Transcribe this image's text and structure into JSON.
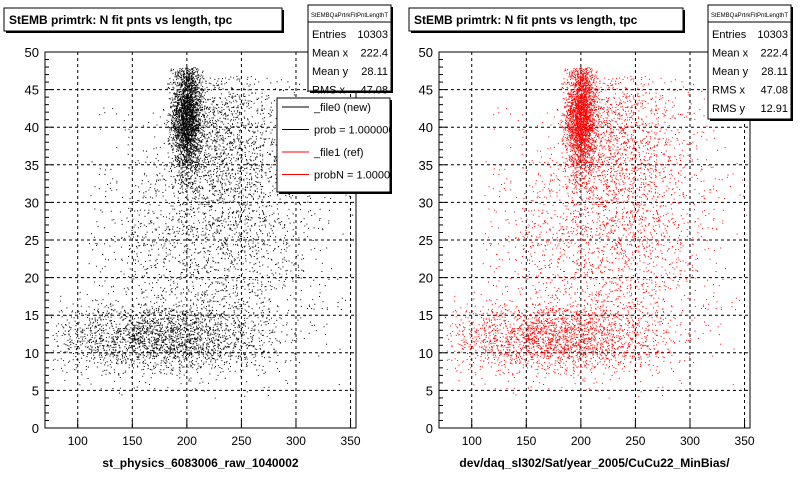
{
  "chart_data": [
    {
      "type": "scatter",
      "title": "StEMB primtrk: N fit pnts vs length, tpc",
      "xlabel": "st_physics_6083006_raw_1040002",
      "ylabel": "",
      "xlim": [
        70,
        355
      ],
      "ylim": [
        0,
        50
      ],
      "x_ticks": [
        "100",
        "150",
        "200",
        "250",
        "300",
        "350"
      ],
      "y_ticks": [
        "0",
        "5",
        "10",
        "15",
        "20",
        "25",
        "30",
        "35",
        "40",
        "45",
        "50"
      ],
      "grid": true,
      "point_color": "#000000",
      "stats": {
        "name": "StEMBQaPrtrkFitPntLengthT",
        "rows": [
          {
            "label": "Entries",
            "value": "10303"
          },
          {
            "label": "Mean x",
            "value": "222.4"
          },
          {
            "label": "Mean y",
            "value": "28.11"
          },
          {
            "label": "RMS x",
            "value": "47.08"
          }
        ]
      },
      "legend": {
        "placement": "top-right",
        "entries": [
          {
            "label": "_file0 (new)",
            "color": "#000000"
          },
          {
            "label": "prob = 1.000000",
            "color": "#000000"
          },
          {
            "label": "_file1 (ref)",
            "color": "#ff0000"
          },
          {
            "label": "probN = 1.000000",
            "color": "#ff0000"
          }
        ]
      },
      "clusters": [
        {
          "x": 200,
          "y": 41.5,
          "sx": 7,
          "sy": 3.8,
          "n": 2600,
          "xmin": 178,
          "xmax": 226,
          "ymin": 25,
          "ymax": 48
        },
        {
          "x": 232,
          "y": 38,
          "sx": 30,
          "sy": 6,
          "n": 1300,
          "xmin": 190,
          "xmax": 318,
          "ymin": 22,
          "ymax": 47
        },
        {
          "x": 175,
          "y": 12,
          "sx": 50,
          "sy": 2.4,
          "n": 2200,
          "xmin": 75,
          "xmax": 320,
          "ymin": 4,
          "ymax": 20
        },
        {
          "x": 210,
          "y": 24,
          "sx": 55,
          "sy": 8,
          "n": 1400,
          "xmin": 110,
          "xmax": 350,
          "ymin": 8,
          "ymax": 46
        },
        {
          "x": 250,
          "y": 28,
          "sx": 45,
          "sy": 10,
          "n": 900,
          "xmin": 150,
          "xmax": 352,
          "ymin": 4,
          "ymax": 46
        }
      ]
    },
    {
      "type": "scatter",
      "title": "StEMB primtrk: N fit pnts vs length, tpc",
      "xlabel": "dev/daq_sl302/Sat/year_2005/CuCu22_MinBias/",
      "ylabel": "",
      "xlim": [
        70,
        355
      ],
      "ylim": [
        0,
        50
      ],
      "x_ticks": [
        "100",
        "150",
        "200",
        "250",
        "300",
        "350"
      ],
      "y_ticks": [
        "0",
        "5",
        "10",
        "15",
        "20",
        "25",
        "30",
        "35",
        "40",
        "45",
        "50"
      ],
      "grid": true,
      "point_color": "#ff0000",
      "stats": {
        "name": "StEMBQaPrtrkFitPntLengthT",
        "rows": [
          {
            "label": "Entries",
            "value": "10303"
          },
          {
            "label": "Mean x",
            "value": "222.4"
          },
          {
            "label": "Mean y",
            "value": "28.11"
          },
          {
            "label": "RMS x",
            "value": "47.08"
          },
          {
            "label": "RMS y",
            "value": "12.91"
          }
        ]
      },
      "clusters": [
        {
          "x": 200,
          "y": 41.5,
          "sx": 7,
          "sy": 3.8,
          "n": 2600,
          "xmin": 178,
          "xmax": 226,
          "ymin": 25,
          "ymax": 48
        },
        {
          "x": 232,
          "y": 38,
          "sx": 30,
          "sy": 6,
          "n": 1300,
          "xmin": 190,
          "xmax": 318,
          "ymin": 22,
          "ymax": 47
        },
        {
          "x": 175,
          "y": 12,
          "sx": 50,
          "sy": 2.4,
          "n": 2200,
          "xmin": 75,
          "xmax": 320,
          "ymin": 4,
          "ymax": 20
        },
        {
          "x": 210,
          "y": 24,
          "sx": 55,
          "sy": 8,
          "n": 1400,
          "xmin": 110,
          "xmax": 350,
          "ymin": 8,
          "ymax": 46
        },
        {
          "x": 250,
          "y": 28,
          "sx": 45,
          "sy": 10,
          "n": 900,
          "xmin": 150,
          "xmax": 352,
          "ymin": 4,
          "ymax": 46
        }
      ]
    }
  ]
}
